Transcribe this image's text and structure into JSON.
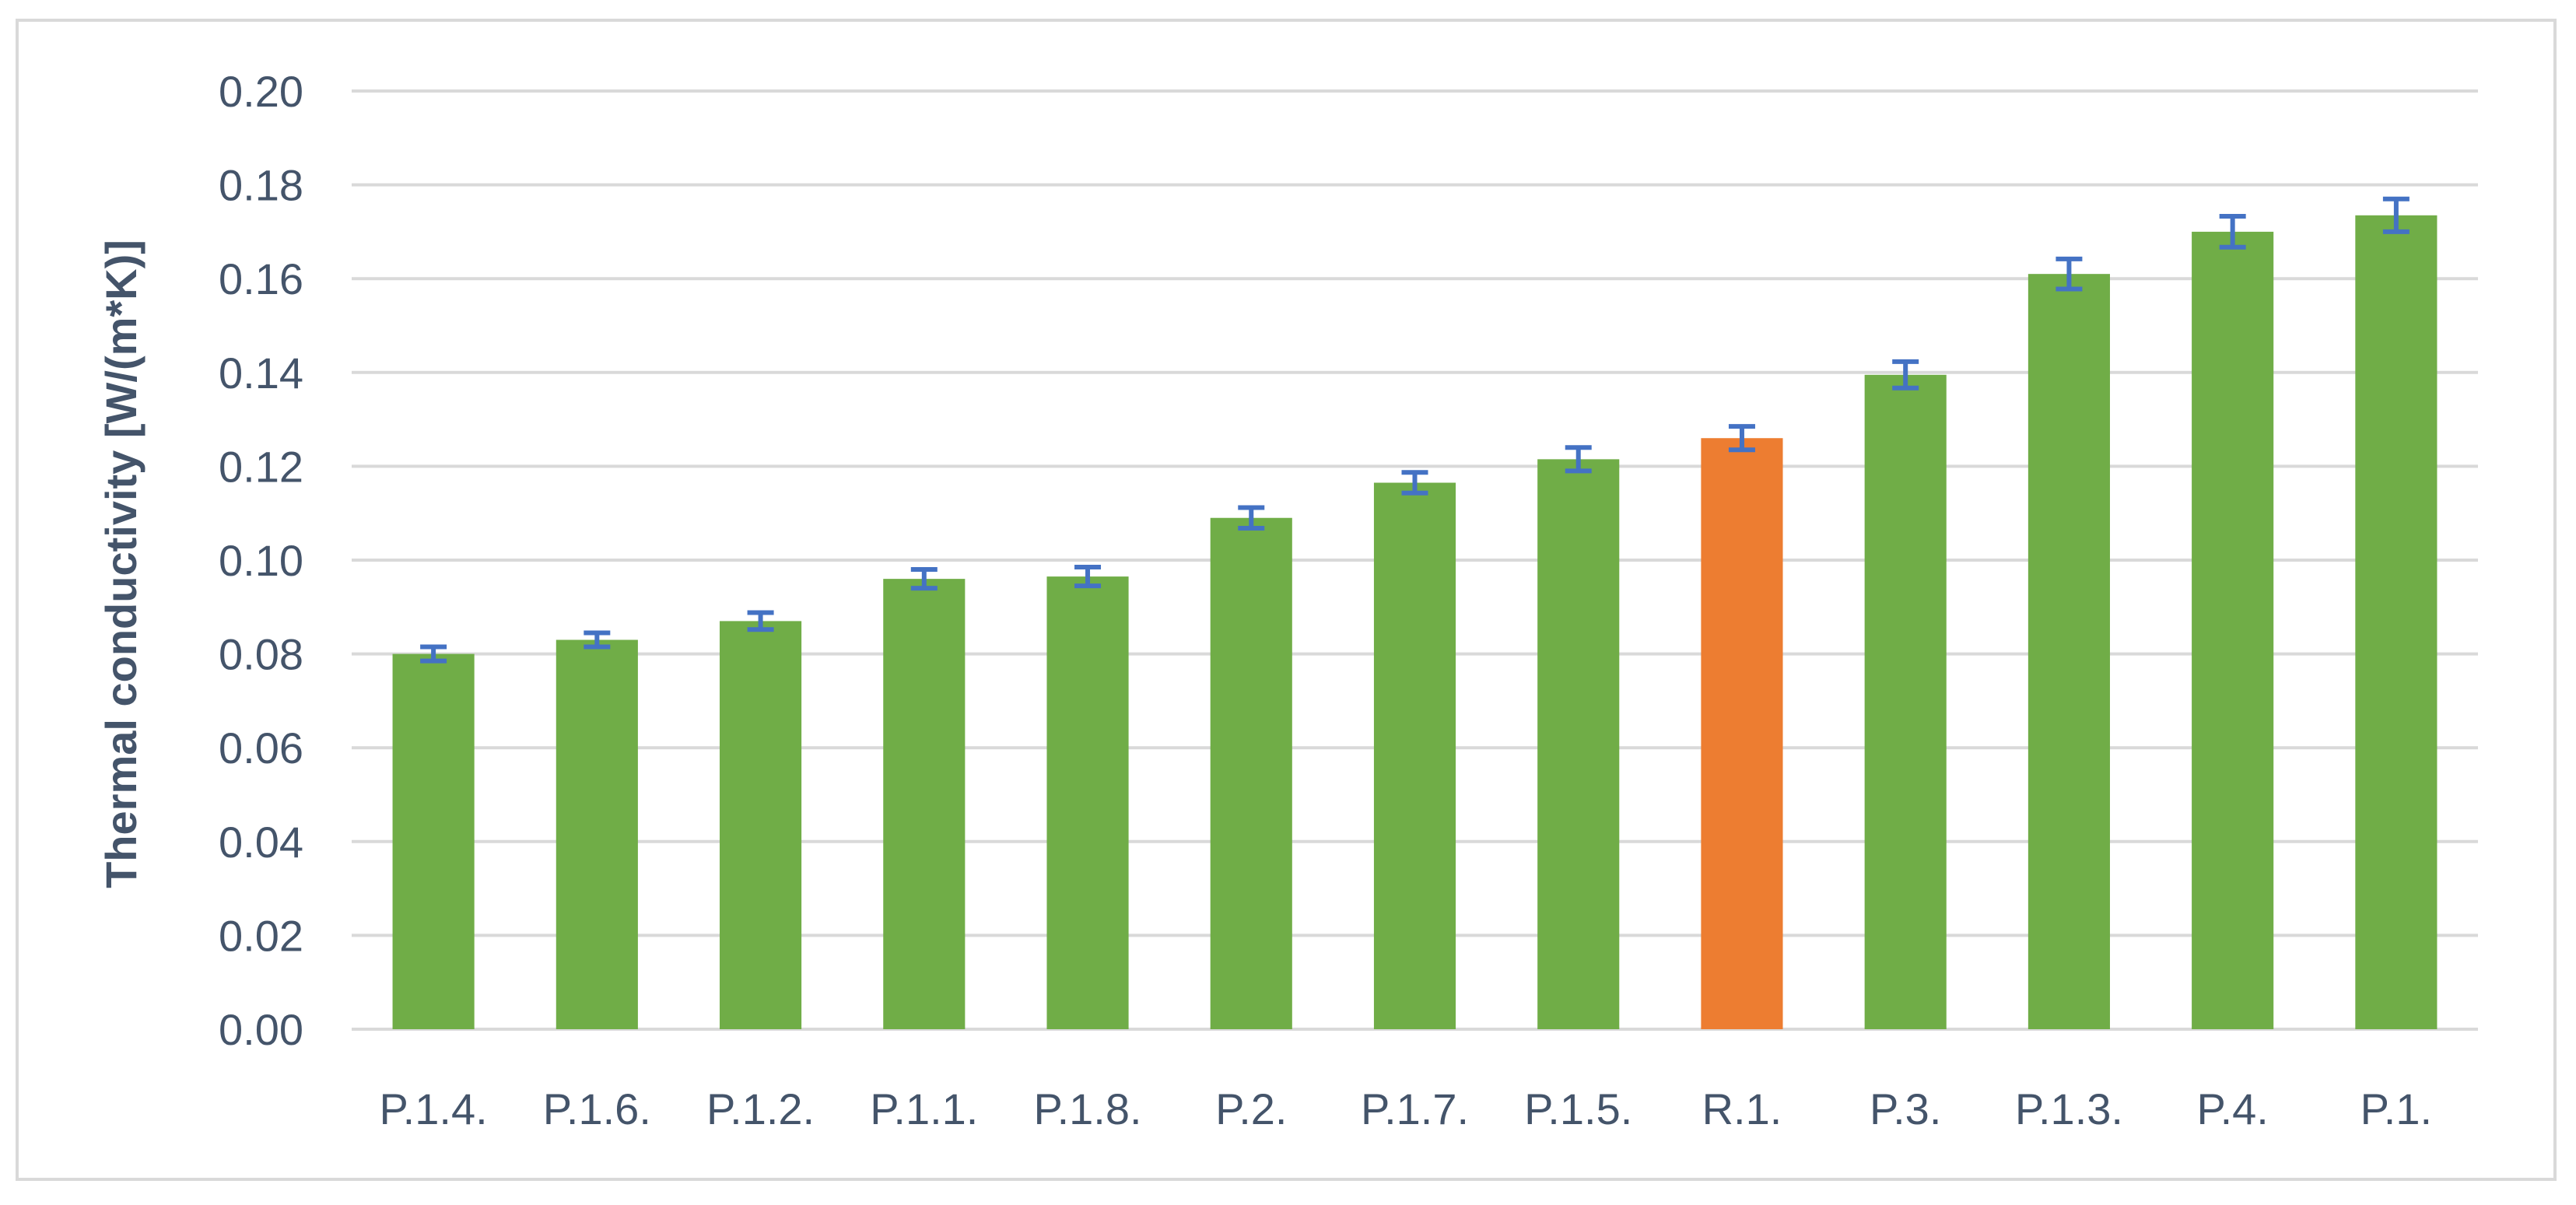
{
  "chart_data": {
    "type": "bar",
    "title": "",
    "xlabel": "",
    "ylabel": "Thermal conductivity [W/(m*K)]",
    "ylim": [
      0,
      0.2
    ],
    "y_ticks": [
      "0.00",
      "0.02",
      "0.04",
      "0.06",
      "0.08",
      "0.10",
      "0.12",
      "0.14",
      "0.16",
      "0.18",
      "0.20"
    ],
    "grid": true,
    "legend": "none",
    "categories": [
      "P.1.4.",
      "P.1.6.",
      "P.1.2.",
      "P.1.1.",
      "P.1.8.",
      "P.2.",
      "P.1.7.",
      "P.1.5.",
      "R.1.",
      "P.3.",
      "P.1.3.",
      "P.4.",
      "P.1."
    ],
    "values": [
      0.08,
      0.083,
      0.087,
      0.096,
      0.0965,
      0.109,
      0.1165,
      0.1215,
      0.126,
      0.1395,
      0.161,
      0.17,
      0.1735
    ],
    "errors": [
      0.0015,
      0.0015,
      0.0018,
      0.002,
      0.002,
      0.0022,
      0.0022,
      0.0025,
      0.0025,
      0.0028,
      0.0032,
      0.0033,
      0.0035
    ],
    "highlight_index": 8,
    "colors": {
      "bar": "#70AD47",
      "highlight": "#ED7D31",
      "error_bar": "#4472C4",
      "grid": "#D9D9D9",
      "text": "#44546A"
    }
  }
}
